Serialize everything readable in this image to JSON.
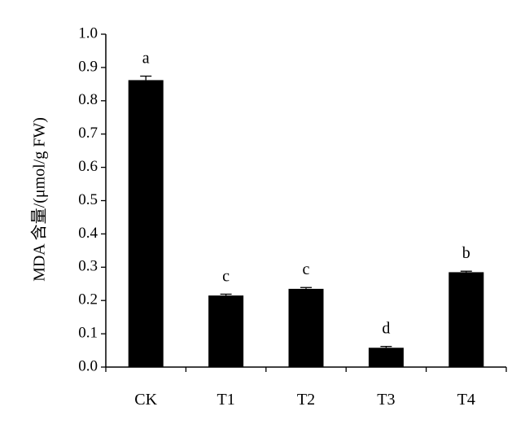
{
  "chart_data": {
    "type": "bar",
    "title": "",
    "xlabel": "",
    "ylabel": "MDA 含量/(μmol/g FW)",
    "categories": [
      "CK",
      "T1",
      "T2",
      "T3",
      "T4"
    ],
    "values": [
      0.862,
      0.215,
      0.235,
      0.058,
      0.285
    ],
    "errors": [
      0.012,
      0.004,
      0.004,
      0.004,
      0.003
    ],
    "significance": [
      "a",
      "c",
      "c",
      "d",
      "b"
    ],
    "ylim": [
      0,
      1.0
    ],
    "yticks": [
      "0.0",
      "0.1",
      "0.2",
      "0.3",
      "0.4",
      "0.5",
      "0.6",
      "0.7",
      "0.8",
      "0.9",
      "1.0"
    ],
    "grid": false,
    "legend": "none",
    "bar_color": "#000000"
  }
}
